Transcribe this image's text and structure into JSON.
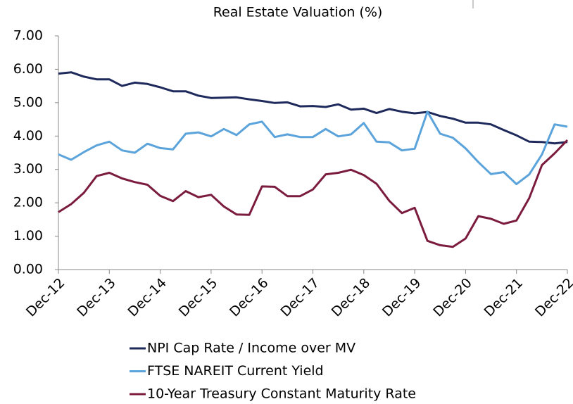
{
  "chart_data": {
    "type": "line",
    "title": "Real Estate Valuation (%)",
    "categories": [
      "Dec-12",
      null,
      null,
      null,
      "Dec-13",
      null,
      null,
      null,
      "Dec-14",
      null,
      null,
      null,
      "Dec-15",
      null,
      null,
      null,
      "Dec-16",
      null,
      null,
      null,
      "Dec-17",
      null,
      null,
      null,
      "Dec-18",
      null,
      null,
      null,
      "Dec-19",
      null,
      null,
      null,
      "Dec-20",
      null,
      null,
      null,
      "Dec-21",
      null,
      null,
      null,
      "Dec-22"
    ],
    "series": [
      {
        "name": "NPI Cap Rate / Income over MV",
        "color": "#1f2a5c",
        "values": [
          5.87,
          5.91,
          5.78,
          5.7,
          5.7,
          5.5,
          5.6,
          5.56,
          5.46,
          5.34,
          5.34,
          5.21,
          5.14,
          5.15,
          5.16,
          5.1,
          5.05,
          4.99,
          5.01,
          4.89,
          4.9,
          4.87,
          4.95,
          4.79,
          4.82,
          4.69,
          4.81,
          4.73,
          4.68,
          4.72,
          4.6,
          4.52,
          4.4,
          4.4,
          4.35,
          4.18,
          4.02,
          3.83,
          3.82,
          3.78,
          3.82
        ]
      },
      {
        "name": "FTSE NAREIT Current Yield",
        "color": "#5ba3db",
        "values": [
          3.45,
          3.29,
          3.52,
          3.72,
          3.83,
          3.57,
          3.5,
          3.77,
          3.64,
          3.6,
          4.07,
          4.11,
          3.99,
          4.21,
          4.03,
          4.35,
          4.43,
          3.97,
          4.05,
          3.97,
          3.97,
          4.21,
          3.99,
          4.05,
          4.39,
          3.83,
          3.81,
          3.57,
          3.62,
          4.73,
          4.07,
          3.95,
          3.63,
          3.22,
          2.86,
          2.92,
          2.56,
          2.85,
          3.45,
          4.35,
          4.28
        ]
      },
      {
        "name": "10-Year Treasury Constant Maturity Rate",
        "color": "#7b1c3e",
        "values": [
          1.72,
          1.96,
          2.3,
          2.8,
          2.9,
          2.73,
          2.62,
          2.54,
          2.21,
          2.05,
          2.35,
          2.17,
          2.24,
          1.89,
          1.65,
          1.64,
          2.49,
          2.48,
          2.2,
          2.2,
          2.4,
          2.85,
          2.9,
          2.99,
          2.83,
          2.57,
          2.06,
          1.69,
          1.85,
          0.86,
          0.73,
          0.68,
          0.93,
          1.6,
          1.52,
          1.37,
          1.47,
          2.14,
          3.13,
          3.48,
          3.88
        ]
      }
    ],
    "ylim": [
      0,
      7
    ],
    "yticks": [
      {
        "value": 0,
        "label": "0.00"
      },
      {
        "value": 1,
        "label": "1.00"
      },
      {
        "value": 2,
        "label": "2.00"
      },
      {
        "value": 3,
        "label": "3.00"
      },
      {
        "value": 4,
        "label": "4.00"
      },
      {
        "value": 5,
        "label": "5.00"
      },
      {
        "value": 6,
        "label": "6.00"
      },
      {
        "value": 7,
        "label": "7.00"
      }
    ],
    "legend": "bottom"
  }
}
